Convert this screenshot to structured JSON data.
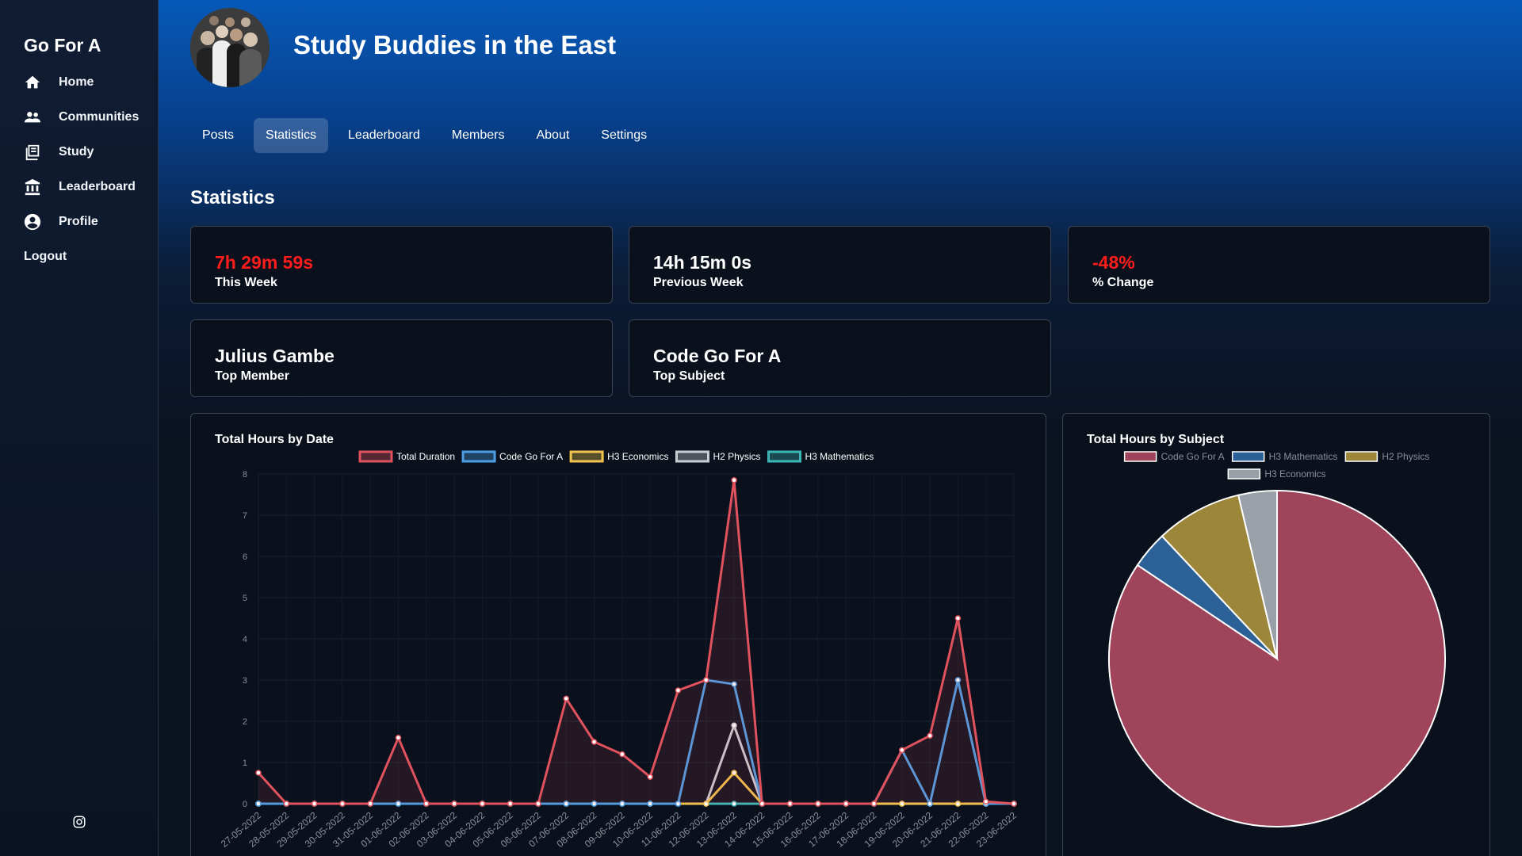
{
  "sidebar": {
    "brand": "Go For A",
    "items": [
      {
        "label": "Home",
        "icon": "home-icon"
      },
      {
        "label": "Communities",
        "icon": "people-icon"
      },
      {
        "label": "Study",
        "icon": "book-icon"
      },
      {
        "label": "Leaderboard",
        "icon": "bank-icon"
      },
      {
        "label": "Profile",
        "icon": "user-circle-icon"
      }
    ],
    "logout": "Logout",
    "footer_icon": "instagram-icon"
  },
  "group": {
    "name": "Study Buddies in the East"
  },
  "tabs": [
    {
      "label": "Posts"
    },
    {
      "label": "Statistics",
      "active": true
    },
    {
      "label": "Leaderboard"
    },
    {
      "label": "Members"
    },
    {
      "label": "About"
    },
    {
      "label": "Settings"
    }
  ],
  "section_title": "Statistics",
  "stats": {
    "this_week": {
      "value": "7h 29m 59s",
      "label": "This Week"
    },
    "previous_week": {
      "value": "14h 15m 0s",
      "label": "Previous Week"
    },
    "change": {
      "value": "-48%",
      "label": "% Change"
    },
    "top_member": {
      "value": "Julius Gambe",
      "label": "Top Member"
    },
    "top_subject": {
      "value": "Code Go For A",
      "label": "Top Subject"
    }
  },
  "colors": {
    "negative": "#ff1c1c",
    "total_duration": "#e0525d",
    "code_go_for_a": "#4b9fe5",
    "h3_economics": "#f2c44d",
    "h2_physics": "#c9cdd4",
    "h3_mathematics": "#3bb7b5"
  },
  "chart_data": [
    {
      "type": "line",
      "title": "Total Hours by Date",
      "ylim": [
        0,
        8
      ],
      "yticks": [
        "0",
        "1",
        "2",
        "3",
        "4",
        "5",
        "6",
        "7",
        "8"
      ],
      "categories": [
        "27-05-2022",
        "28-05-2022",
        "29-05-2022",
        "30-05-2022",
        "31-05-2022",
        "01-06-2022",
        "02-06-2022",
        "03-06-2022",
        "04-06-2022",
        "05-06-2022",
        "06-06-2022",
        "07-06-2022",
        "08-06-2022",
        "09-06-2022",
        "10-06-2022",
        "11-06-2022",
        "12-06-2022",
        "13-06-2022",
        "14-06-2022",
        "15-06-2022",
        "16-06-2022",
        "17-06-2022",
        "18-06-2022",
        "19-06-2022",
        "20-06-2022",
        "21-06-2022",
        "22-06-2022",
        "23-06-2022"
      ],
      "legend": "top",
      "series": [
        {
          "name": "Total Duration",
          "color": "#e0525d",
          "fill": true,
          "values": [
            0.75,
            0,
            0,
            0,
            0,
            1.6,
            0,
            0,
            0,
            0,
            0,
            2.55,
            1.5,
            1.2,
            0.65,
            2.75,
            3.0,
            7.85,
            0,
            0,
            0,
            0,
            0,
            1.3,
            1.65,
            4.5,
            0.05,
            0
          ]
        },
        {
          "name": "Code Go For A",
          "color": "#4b9fe5",
          "values": [
            0,
            0,
            0,
            0,
            0,
            0,
            0,
            0,
            0,
            0,
            0,
            0,
            0,
            0,
            0,
            0,
            3.0,
            2.9,
            0,
            0,
            0,
            0,
            0,
            1.3,
            0,
            3.0,
            0,
            0
          ]
        },
        {
          "name": "H3 Economics",
          "color": "#f2c44d",
          "values": [
            0,
            0,
            0,
            0,
            0,
            0,
            0,
            0,
            0,
            0,
            0,
            0,
            0,
            0,
            0,
            0,
            0,
            0.75,
            0,
            0,
            0,
            0,
            0,
            0,
            0,
            0,
            0,
            0
          ]
        },
        {
          "name": "H2 Physics",
          "color": "#c9cdd4",
          "values": [
            0,
            0,
            0,
            0,
            0,
            0,
            0,
            0,
            0,
            0,
            0,
            0,
            0,
            0,
            0,
            0,
            0,
            1.9,
            0,
            0,
            0,
            0,
            0,
            0,
            0,
            0,
            0,
            0
          ]
        },
        {
          "name": "H3 Mathematics",
          "color": "#3bb7b5",
          "values": [
            0,
            0,
            0,
            0,
            0,
            0,
            0,
            0,
            0,
            0,
            0,
            0,
            0,
            0,
            0,
            0,
            0,
            0,
            0,
            0,
            0,
            0,
            0,
            0,
            0,
            0,
            0,
            0
          ]
        }
      ]
    },
    {
      "type": "pie",
      "title": "Total Hours by Subject",
      "legend": "top",
      "slices": [
        {
          "name": "Code Go For A",
          "value": 84.4,
          "color": "#a0445c"
        },
        {
          "name": "H3 Mathematics",
          "value": 3.6,
          "color": "#2b6196"
        },
        {
          "name": "H2 Physics",
          "value": 8.3,
          "color": "#9c8639"
        },
        {
          "name": "H3 Economics",
          "value": 3.7,
          "color": "#9aa0a8"
        }
      ]
    }
  ]
}
